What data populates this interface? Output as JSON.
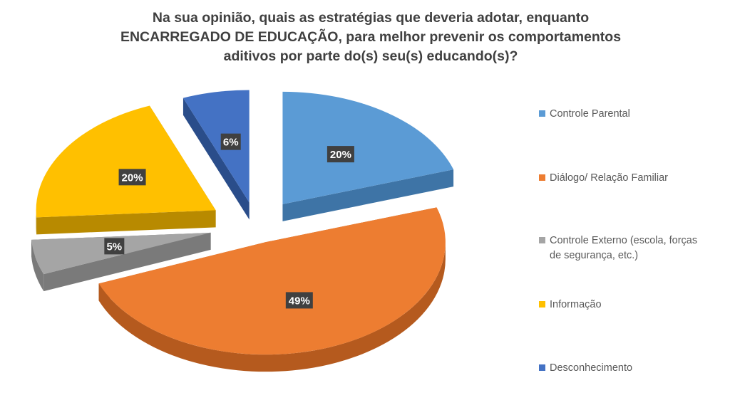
{
  "chart_data": {
    "type": "pie",
    "title_lines": [
      "Na sua opinião,  quais as estratégias que deveria adotar, enquanto",
      "ENCARREGADO DE EDUCAÇÃO, para melhor prevenir os comportamentos",
      "aditivos por parte do(s) seu(s) educando(s)?"
    ],
    "series": [
      {
        "name": "Controle Parental",
        "value": 20,
        "label": "20%",
        "color": "#5B9BD5",
        "side_color": "#3E74A6"
      },
      {
        "name": "Diálogo/ Relação Familiar",
        "value": 49,
        "label": "49%",
        "color": "#ED7D31",
        "side_color": "#B55A1E"
      },
      {
        "name": "Controle Externo (escola, forças de segurança, etc.)",
        "value": 5,
        "label": "5%",
        "color": "#A5A5A5",
        "side_color": "#7A7A7A"
      },
      {
        "name": "Informação",
        "value": 20,
        "label": "20%",
        "color": "#FFC000",
        "side_color": "#B88A00"
      },
      {
        "name": "Desconhecimento",
        "value": 6,
        "label": "6%",
        "color": "#4472C4",
        "side_color": "#2A4D8A"
      }
    ],
    "legend_position": "right",
    "exploded": true,
    "three_d": true
  }
}
